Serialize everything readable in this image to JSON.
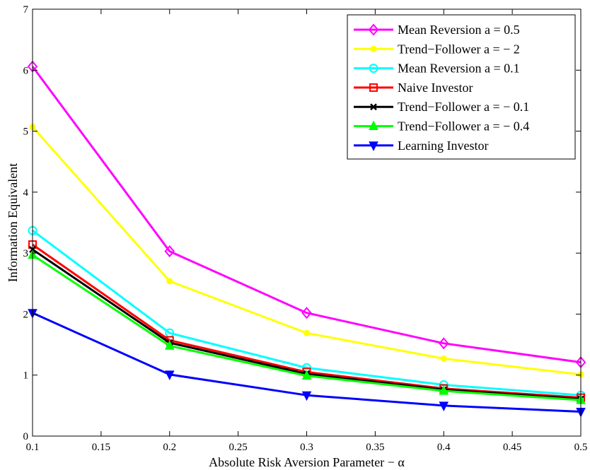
{
  "chart_data": {
    "type": "line",
    "xlabel": "Absolute Risk Aversion Parameter − α",
    "ylabel": "Information Equivalent",
    "xlim": [
      0.1,
      0.5
    ],
    "ylim": [
      0,
      7
    ],
    "x_ticks": [
      "0.1",
      "0.15",
      "0.2",
      "0.25",
      "0.3",
      "0.35",
      "0.4",
      "0.45",
      "0.5"
    ],
    "y_ticks": [
      "0",
      "1",
      "2",
      "3",
      "4",
      "5",
      "6",
      "7"
    ],
    "grid": false,
    "legend_position": "top-right",
    "x": [
      0.1,
      0.2,
      0.3,
      0.4,
      0.5
    ],
    "series": [
      {
        "name": "Mean Reversion a = 0.5",
        "color": "#ff00ff",
        "marker": "diamond-open",
        "values": [
          6.06,
          3.03,
          2.02,
          1.52,
          1.21
        ]
      },
      {
        "name": "Trend−Follower a = − 2",
        "color": "#ffff00",
        "marker": "dot-filled",
        "values": [
          5.07,
          2.54,
          1.69,
          1.27,
          1.01
        ]
      },
      {
        "name": "Mean Reversion a = 0.1",
        "color": "#00ffff",
        "marker": "circle-open",
        "values": [
          3.37,
          1.69,
          1.12,
          0.84,
          0.67
        ]
      },
      {
        "name": "Naive Investor",
        "color": "#ff0000",
        "marker": "square-open",
        "values": [
          3.14,
          1.57,
          1.05,
          0.78,
          0.63
        ]
      },
      {
        "name": "Trend−Follower a = − 0.1",
        "color": "#000000",
        "marker": "x",
        "values": [
          3.06,
          1.53,
          1.02,
          0.76,
          0.61
        ]
      },
      {
        "name": "Trend−Follower a = − 0.4",
        "color": "#00ff00",
        "marker": "triangle-up-filled",
        "values": [
          2.97,
          1.48,
          0.99,
          0.74,
          0.59
        ]
      },
      {
        "name": "Learning Investor",
        "color": "#0000ff",
        "marker": "triangle-down-filled",
        "values": [
          2.02,
          1.01,
          0.67,
          0.5,
          0.4
        ]
      }
    ]
  }
}
